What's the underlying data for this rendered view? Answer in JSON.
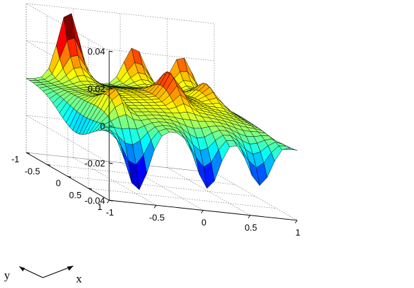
{
  "chart_data": {
    "type": "surface",
    "title": "",
    "x_range": [
      -1,
      1
    ],
    "y_range": [
      -1,
      1
    ],
    "z_range": [
      -0.04,
      0.04
    ],
    "x_ticks": [
      "-1",
      "-0.5",
      "0",
      "0.5",
      "1"
    ],
    "y_ticks": [
      "-1",
      "-0.5",
      "0",
      "0.5",
      "1"
    ],
    "z_ticks": [
      "-0.04",
      "-0.02",
      "0",
      "0.02",
      "0.04"
    ],
    "x_axis_name": "x",
    "y_axis_name": "y",
    "grid": "on",
    "colormap": "jet",
    "mesh_resolution": 25,
    "features": {
      "back_edge_peaks": [
        {
          "x": -0.55,
          "y": -1.0,
          "z": 0.038
        },
        {
          "x": 0.15,
          "y": -1.0,
          "z": 0.022
        },
        {
          "x": 0.65,
          "y": -1.0,
          "z": 0.02
        }
      ],
      "front_edge_valleys": [
        {
          "x": -0.7,
          "y": 1.0,
          "z": -0.04
        },
        {
          "x": 0.05,
          "y": 1.0,
          "z": -0.035
        },
        {
          "x": 0.6,
          "y": 1.0,
          "z": -0.03
        }
      ],
      "interior_peaks": [
        {
          "x": -0.7,
          "y": 0.45,
          "z": 0.012
        },
        {
          "x": 0.05,
          "y": 0.1,
          "z": 0.014
        },
        {
          "x": 0.6,
          "y": -0.3,
          "z": 0.01
        }
      ]
    }
  }
}
